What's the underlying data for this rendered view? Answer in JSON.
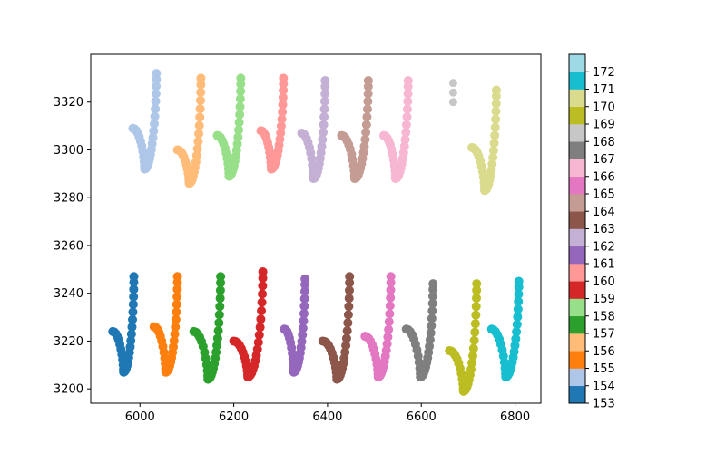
{
  "chart_data": {
    "type": "scatter",
    "title": "",
    "xlabel": "",
    "ylabel": "",
    "xlim": [
      5895,
      6855
    ],
    "ylim": [
      3194,
      3340
    ],
    "x_ticks": [
      6000,
      6200,
      6400,
      6600,
      6800
    ],
    "y_ticks": [
      3200,
      3220,
      3240,
      3260,
      3280,
      3300,
      3320
    ],
    "colorbar": {
      "colormap": "tab20",
      "range": [
        153,
        173
      ],
      "ticks": [
        153,
        154,
        155,
        156,
        157,
        158,
        159,
        160,
        161,
        162,
        163,
        164,
        165,
        166,
        167,
        168,
        169,
        170,
        171,
        172
      ],
      "colors": [
        "#1f77b4",
        "#aec7e8",
        "#ff7f0e",
        "#ffbb78",
        "#2ca02c",
        "#98df8a",
        "#d62728",
        "#ff9896",
        "#9467bd",
        "#c5b0d5",
        "#8c564b",
        "#c49c94",
        "#e377c2",
        "#f7b6d2",
        "#7f7f7f",
        "#c7c7c7",
        "#bcbd22",
        "#dbdb8d",
        "#17becf",
        "#9edae5"
      ]
    },
    "series": [
      {
        "color_value": 153,
        "x_left": 5942,
        "y_left_top": 3224,
        "x_bottom": 5965,
        "y_bottom": 3207,
        "x_right": 5987,
        "y_right_top": 3247
      },
      {
        "color_value": 155,
        "x_left": 6030,
        "y_left_top": 3226,
        "x_bottom": 6055,
        "y_bottom": 3207,
        "x_right": 6080,
        "y_right_top": 3247
      },
      {
        "color_value": 157,
        "x_left": 6115,
        "y_left_top": 3224,
        "x_bottom": 6145,
        "y_bottom": 3204,
        "x_right": 6172,
        "y_right_top": 3247
      },
      {
        "color_value": 159,
        "x_left": 6200,
        "y_left_top": 3220,
        "x_bottom": 6230,
        "y_bottom": 3205,
        "x_right": 6262,
        "y_right_top": 3249
      },
      {
        "color_value": 161,
        "x_left": 6308,
        "y_left_top": 3225,
        "x_bottom": 6328,
        "y_bottom": 3207,
        "x_right": 6352,
        "y_right_top": 3246
      },
      {
        "color_value": 163,
        "x_left": 6390,
        "y_left_top": 3220,
        "x_bottom": 6420,
        "y_bottom": 3204,
        "x_right": 6447,
        "y_right_top": 3247
      },
      {
        "color_value": 165,
        "x_left": 6480,
        "y_left_top": 3222,
        "x_bottom": 6508,
        "y_bottom": 3205,
        "x_right": 6535,
        "y_right_top": 3247
      },
      {
        "color_value": 167,
        "x_left": 6568,
        "y_left_top": 3225,
        "x_bottom": 6598,
        "y_bottom": 3205,
        "x_right": 6625,
        "y_right_top": 3244
      },
      {
        "color_value": 169,
        "x_left": 6660,
        "y_left_top": 3216,
        "x_bottom": 6690,
        "y_bottom": 3199,
        "x_right": 6718,
        "y_right_top": 3244
      },
      {
        "color_value": 171,
        "x_left": 6750,
        "y_left_top": 3225,
        "x_bottom": 6780,
        "y_bottom": 3205,
        "x_right": 6808,
        "y_right_top": 3245
      },
      {
        "color_value": 154,
        "x_left": 5985,
        "y_left_top": 3309,
        "x_bottom": 6010,
        "y_bottom": 3292,
        "x_right": 6035,
        "y_right_top": 3332
      },
      {
        "color_value": 156,
        "x_left": 6080,
        "y_left_top": 3300,
        "x_bottom": 6105,
        "y_bottom": 3286,
        "x_right": 6130,
        "y_right_top": 3330
      },
      {
        "color_value": 158,
        "x_left": 6165,
        "y_left_top": 3306,
        "x_bottom": 6190,
        "y_bottom": 3289,
        "x_right": 6215,
        "y_right_top": 3330
      },
      {
        "color_value": 160,
        "x_left": 6258,
        "y_left_top": 3308,
        "x_bottom": 6280,
        "y_bottom": 3292,
        "x_right": 6306,
        "y_right_top": 3330
      },
      {
        "color_value": 162,
        "x_left": 6345,
        "y_left_top": 3307,
        "x_bottom": 6370,
        "y_bottom": 3288,
        "x_right": 6395,
        "y_right_top": 3329
      },
      {
        "color_value": 164,
        "x_left": 6430,
        "y_left_top": 3306,
        "x_bottom": 6458,
        "y_bottom": 3288,
        "x_right": 6487,
        "y_right_top": 3329
      },
      {
        "color_value": 166,
        "x_left": 6520,
        "y_left_top": 3306,
        "x_bottom": 6545,
        "y_bottom": 3288,
        "x_right": 6572,
        "y_right_top": 3329
      },
      {
        "color_value": 170,
        "x_left": 6708,
        "y_left_top": 3301,
        "x_bottom": 6735,
        "y_bottom": 3283,
        "x_right": 6760,
        "y_right_top": 3325
      }
    ],
    "extra_points": [
      {
        "color_value": 168,
        "points": [
          [
            6668,
            3328
          ],
          [
            6668,
            3324
          ],
          [
            6668,
            3320
          ]
        ]
      }
    ]
  }
}
